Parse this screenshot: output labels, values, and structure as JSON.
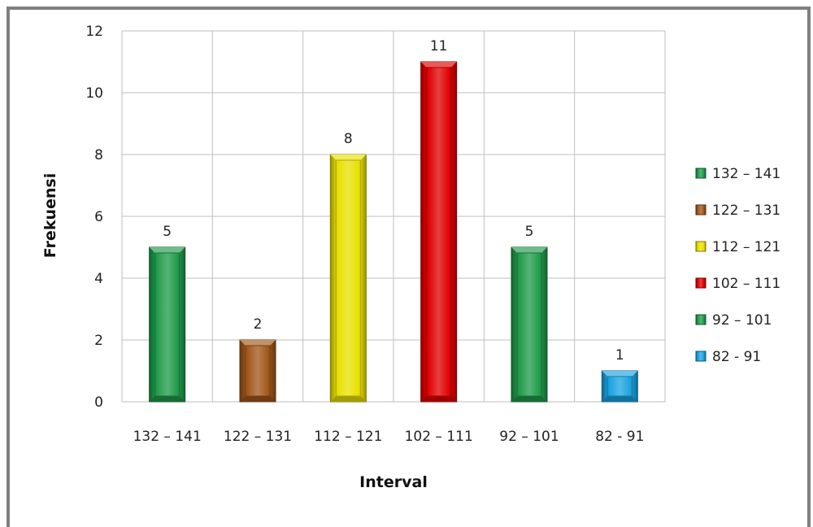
{
  "chart_data": {
    "type": "bar",
    "title": "",
    "xlabel": "Interval",
    "ylabel": "Frekuensi",
    "categories": [
      "132 – 141",
      "122 – 131",
      "112 – 121",
      "102 – 111",
      "92 – 101",
      "82 - 91"
    ],
    "values": [
      5,
      2,
      8,
      11,
      5,
      1
    ],
    "colors": [
      "#1f9a4a",
      "#a0561a",
      "#e8e000",
      "#e00000",
      "#1f9a4a",
      "#1aa3e0"
    ],
    "ylim": [
      0,
      12
    ],
    "yticks": [
      "0",
      "2",
      "4",
      "6",
      "8",
      "10",
      "12"
    ],
    "grid": true,
    "legend": {
      "position": "right",
      "entries": [
        "132 – 141",
        "122 – 131",
        "112 – 121",
        "102 – 111",
        "92 – 101",
        "82 - 91"
      ]
    }
  }
}
